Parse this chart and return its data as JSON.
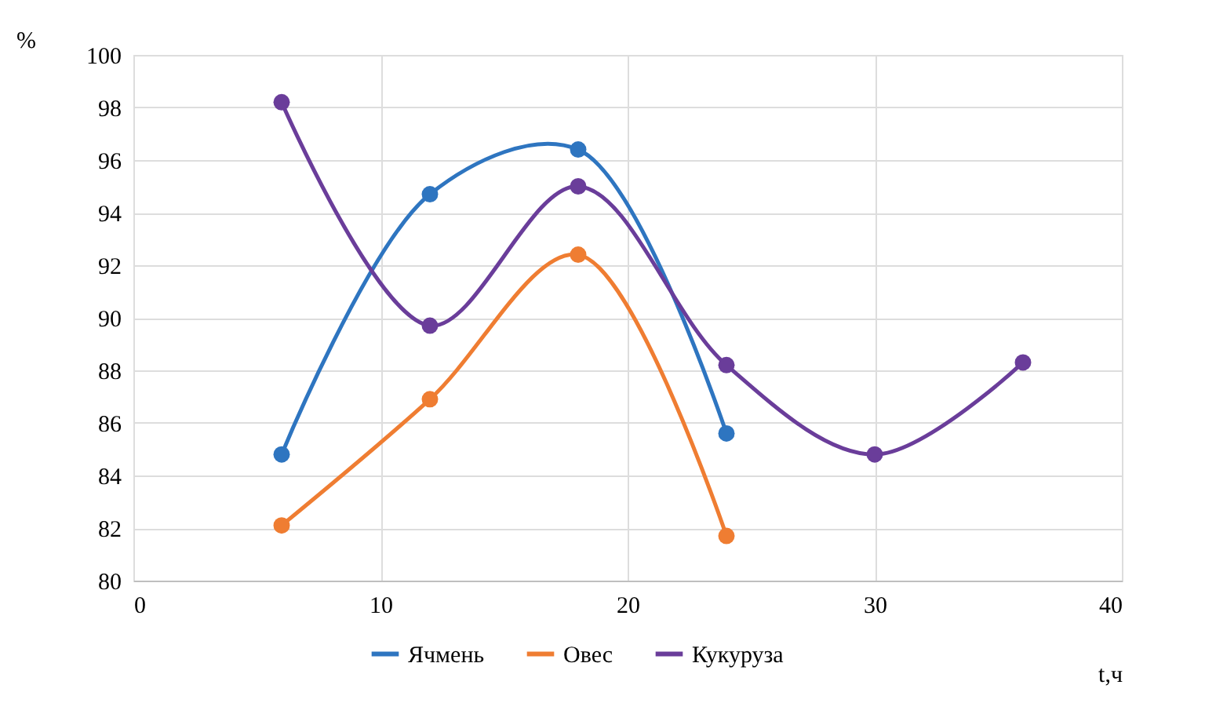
{
  "chart_data": {
    "type": "line",
    "xlabel": "t,ч",
    "ylabel": "%",
    "xlim": [
      0,
      40
    ],
    "xticks": [
      0,
      10,
      20,
      30,
      40
    ],
    "ylim": [
      80,
      100
    ],
    "yticks": [
      80,
      82,
      84,
      86,
      88,
      90,
      92,
      94,
      96,
      98,
      100
    ],
    "grid": true,
    "legend": "bottom",
    "marker": "circle",
    "line_style": "solid",
    "series": [
      {
        "name": "Ячмень",
        "color": "#2e75c0",
        "x": [
          6,
          12,
          18,
          24
        ],
        "values": [
          84.8,
          94.7,
          96.4,
          85.6
        ]
      },
      {
        "name": "Овес",
        "color": "#ef7d32",
        "x": [
          6,
          12,
          18,
          24
        ],
        "values": [
          82.1,
          86.9,
          92.4,
          81.7
        ]
      },
      {
        "name": "Кукуруза",
        "color": "#6a3d9a",
        "x": [
          6,
          12,
          18,
          24,
          30,
          36
        ],
        "values": [
          98.2,
          89.7,
          95.0,
          88.2,
          84.8,
          88.3
        ]
      }
    ]
  }
}
